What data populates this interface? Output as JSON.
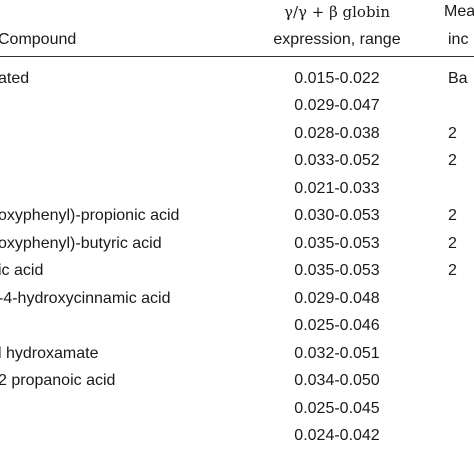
{
  "header": {
    "compound_label": "Compound",
    "expression_label_line1": "γ/γ + β globin",
    "expression_label_line2": "expression, range",
    "mean_label_line1": "Mea",
    "mean_label_line2": "inc"
  },
  "rows": [
    {
      "compound": "ated",
      "range": "0.015-0.022",
      "mean": "Ba"
    },
    {
      "compound": "",
      "range": "0.029-0.047",
      "mean": ""
    },
    {
      "compound": "",
      "range": "0.028-0.038",
      "mean": "2"
    },
    {
      "compound": "",
      "range": "0.033-0.052",
      "mean": "2"
    },
    {
      "compound": "",
      "range": "0.021-0.033",
      "mean": ""
    },
    {
      "compound": "oxyphenyl)-propionic acid",
      "range": "0.030-0.053",
      "mean": "2"
    },
    {
      "compound": "oxyphenyl)-butyric acid",
      "range": "0.035-0.053",
      "mean": "2"
    },
    {
      "compound": "ic acid",
      "range": "0.035-0.053",
      "mean": "2"
    },
    {
      "compound": "-4-hydroxycinnamic acid",
      "range": "0.029-0.048",
      "mean": ""
    },
    {
      "compound": "",
      "range": "0.025-0.046",
      "mean": ""
    },
    {
      "compound": "l hydroxamate",
      "range": "0.032-0.051",
      "mean": ""
    },
    {
      "compound": "2 propanoic acid",
      "range": "0.034-0.050",
      "mean": ""
    },
    {
      "compound": "",
      "range": "0.025-0.045",
      "mean": ""
    },
    {
      "compound": "",
      "range": "0.024-0.042",
      "mean": ""
    }
  ]
}
